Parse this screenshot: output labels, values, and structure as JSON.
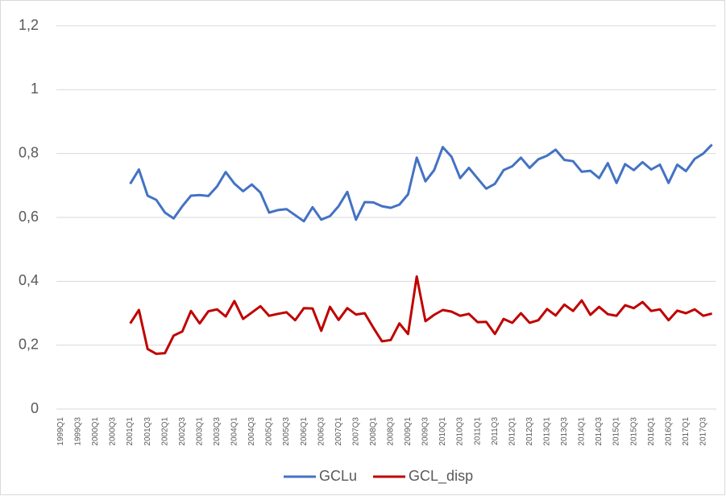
{
  "chart_data": {
    "type": "line",
    "categories": [
      "1999Q1",
      null,
      "1999Q3",
      null,
      "2000Q1",
      null,
      "2000Q3",
      null,
      "2001Q1",
      null,
      "2001Q3",
      null,
      "2002Q1",
      null,
      "2002Q3",
      null,
      "2003Q1",
      null,
      "2003Q3",
      null,
      "2004Q1",
      null,
      "2004Q3",
      null,
      "2005Q1",
      null,
      "2005Q3",
      null,
      "2006Q1",
      null,
      "2006Q3",
      null,
      "2007Q1",
      null,
      "2007Q3",
      null,
      "2008Q1",
      null,
      "2008Q3",
      null,
      "2009Q1",
      null,
      "2009Q3",
      null,
      "2010Q1",
      null,
      "2010Q3",
      null,
      "2011Q1",
      null,
      "2011Q3",
      null,
      "2012Q1",
      null,
      "2012Q3",
      null,
      "2013Q1",
      null,
      "2013Q3",
      null,
      "2014Q1",
      null,
      "2014Q3",
      null,
      "2015Q1",
      null,
      "2015Q3",
      null,
      "2016Q1",
      null,
      "2016Q3",
      null,
      "2017Q1",
      null,
      "2017Q3",
      null
    ],
    "series": [
      {
        "name": "GCLu",
        "color": "#4472c4",
        "values": [
          null,
          null,
          null,
          null,
          null,
          null,
          null,
          null,
          0.705,
          0.75,
          0.668,
          0.655,
          0.615,
          0.597,
          0.635,
          0.668,
          0.67,
          0.667,
          0.697,
          0.742,
          0.706,
          0.682,
          0.703,
          0.678,
          0.615,
          0.623,
          0.626,
          0.607,
          0.588,
          0.632,
          0.593,
          0.604,
          0.635,
          0.68,
          0.593,
          0.648,
          0.647,
          0.635,
          0.63,
          0.64,
          0.672,
          0.787,
          0.713,
          0.748,
          0.82,
          0.79,
          0.723,
          0.755,
          0.722,
          0.69,
          0.705,
          0.748,
          0.76,
          0.787,
          0.755,
          0.782,
          0.793,
          0.812,
          0.78,
          0.776,
          0.743,
          0.746,
          0.723,
          0.77,
          0.708,
          0.767,
          0.748,
          0.773,
          0.75,
          0.765,
          0.708,
          0.765,
          0.745,
          0.783,
          0.8,
          0.828
        ]
      },
      {
        "name": "GCL_disp",
        "color": "#c00000",
        "values": [
          null,
          null,
          null,
          null,
          null,
          null,
          null,
          null,
          0.268,
          0.31,
          0.188,
          0.173,
          0.175,
          0.23,
          0.243,
          0.307,
          0.268,
          0.306,
          0.312,
          0.29,
          0.338,
          0.282,
          0.302,
          0.322,
          0.292,
          0.298,
          0.303,
          0.278,
          0.316,
          0.315,
          0.245,
          0.32,
          0.279,
          0.316,
          0.296,
          0.3,
          0.255,
          0.212,
          0.216,
          0.268,
          0.235,
          0.415,
          0.275,
          0.295,
          0.31,
          0.305,
          0.292,
          0.298,
          0.272,
          0.273,
          0.235,
          0.282,
          0.27,
          0.3,
          0.27,
          0.278,
          0.313,
          0.293,
          0.327,
          0.307,
          0.34,
          0.295,
          0.32,
          0.297,
          0.292,
          0.325,
          0.316,
          0.335,
          0.307,
          0.312,
          0.278,
          0.308,
          0.3,
          0.312,
          0.292,
          0.299
        ]
      }
    ],
    "ylim": [
      0,
      1.2
    ],
    "yticks": [
      0,
      {
        "value": 0.2,
        "label": "0,2"
      },
      {
        "value": 0.4,
        "label": "0,4"
      },
      {
        "value": 0.6,
        "label": "0,6"
      },
      {
        "value": 0.8,
        "label": "0,8"
      },
      1,
      {
        "value": 1.2,
        "label": "1,2"
      }
    ],
    "grid": true,
    "legend": "bottom"
  }
}
